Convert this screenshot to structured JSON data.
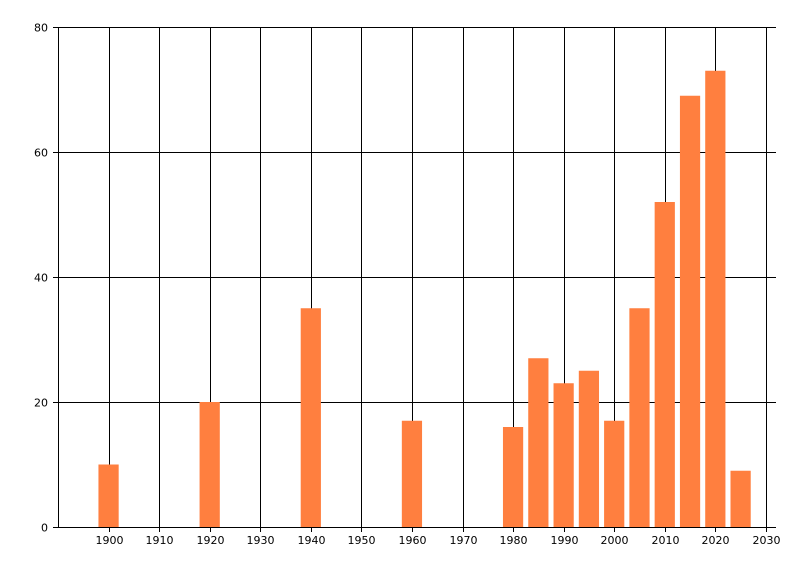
{
  "chart_data": {
    "type": "bar",
    "title": "",
    "xlabel": "",
    "ylabel": "",
    "x": [
      1900,
      1920,
      1940,
      1960,
      1980,
      1985,
      1990,
      1995,
      2000,
      2005,
      2010,
      2015,
      2020,
      2025
    ],
    "values": [
      10,
      20,
      35,
      17,
      16,
      27,
      23,
      25,
      17,
      35,
      52,
      69,
      73,
      9
    ],
    "xlim": [
      1890,
      2032
    ],
    "ylim": [
      0,
      80
    ],
    "x_ticks": [
      "1900",
      "1910",
      "1920",
      "1930",
      "1940",
      "1950",
      "1960",
      "1970",
      "1980",
      "1990",
      "2000",
      "2010",
      "2020",
      "2030"
    ],
    "y_ticks": [
      "0",
      "20",
      "40",
      "60",
      "80"
    ],
    "bar_width_years": 4,
    "grid": true,
    "colors": {
      "bar": "#ff7f3f",
      "grid": "#000000",
      "axis": "#000000",
      "background": "#ffffff"
    }
  }
}
